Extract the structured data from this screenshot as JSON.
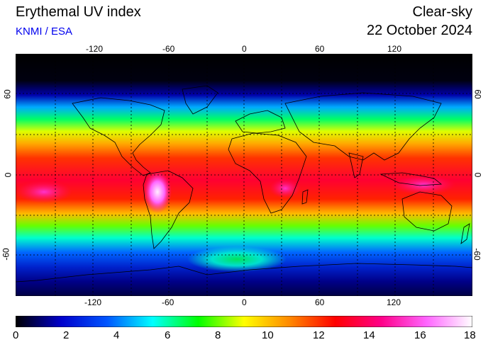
{
  "header": {
    "title": "Erythemal UV index",
    "credit": "KNMI / ESA",
    "condition": "Clear-sky",
    "date": "22 October 2024"
  },
  "map": {
    "lon_ticks": [
      "-120",
      "-60",
      "0",
      "60",
      "120"
    ],
    "lat_ticks": [
      "60",
      "0",
      "-60"
    ],
    "gridlines": true
  },
  "colorbar": {
    "min": 0,
    "max": 18,
    "labels": [
      "0",
      "2",
      "4",
      "6",
      "8",
      "10",
      "12",
      "14",
      "16",
      "18"
    ],
    "colors": [
      "#000000",
      "#0000cc",
      "#0055ff",
      "#00ffff",
      "#00ff00",
      "#ffff00",
      "#ff8800",
      "#ff0000",
      "#ff0088",
      "#ff66ff",
      "#ffffff"
    ]
  }
}
